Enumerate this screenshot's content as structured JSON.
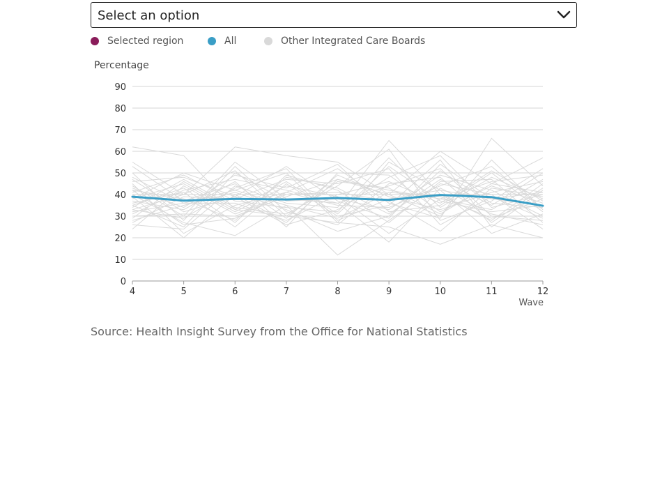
{
  "select": {
    "value": "Select an option"
  },
  "legend": {
    "items": [
      {
        "label": "Selected region",
        "color": "#8a1c5a"
      },
      {
        "label": "All",
        "color": "#3a9ec6"
      },
      {
        "label": "Other Integrated Care Boards",
        "color": "#d9d9d9"
      }
    ]
  },
  "chart_data": {
    "type": "line",
    "ylabel": "Percentage",
    "xlabel": "Wave",
    "ylim": [
      0,
      90
    ],
    "yticks": [
      0,
      10,
      20,
      30,
      40,
      50,
      60,
      70,
      80,
      90
    ],
    "x": [
      4,
      5,
      6,
      7,
      8,
      9,
      10,
      11,
      12
    ],
    "grid": true,
    "series": [
      {
        "name": "All",
        "color": "#3a9ec6",
        "values": [
          39,
          37.2,
          38,
          37.7,
          38.4,
          37.5,
          39.8,
          38.8,
          34.8
        ]
      }
    ],
    "other_series_color": "#d9d9d9",
    "other_series": [
      [
        62,
        58,
        33,
        30,
        27,
        25,
        17,
        26,
        20
      ],
      [
        55,
        40,
        62,
        58,
        55,
        40,
        60,
        45,
        41
      ],
      [
        48,
        36,
        42,
        50,
        27,
        55,
        42,
        38,
        35
      ],
      [
        45,
        22,
        35,
        41,
        52,
        36,
        29,
        66,
        44
      ],
      [
        44,
        30,
        55,
        38,
        36,
        44,
        52,
        30,
        28
      ],
      [
        42,
        38,
        28,
        48,
        43,
        31,
        47,
        35,
        50
      ],
      [
        41,
        49,
        37,
        34,
        32,
        57,
        34,
        48,
        38
      ],
      [
        40,
        27,
        21,
        35,
        12,
        28,
        45,
        40,
        24
      ],
      [
        39,
        20,
        40,
        27,
        47,
        40,
        30,
        56,
        33
      ],
      [
        38,
        45,
        32,
        44,
        39,
        22,
        38,
        33,
        47
      ],
      [
        37,
        33,
        46,
        25,
        50,
        49,
        32,
        44,
        36
      ],
      [
        36,
        41,
        25,
        45,
        30,
        35,
        56,
        25,
        42
      ],
      [
        35,
        25,
        50,
        37,
        38,
        33,
        49,
        42,
        30
      ],
      [
        34,
        47,
        34,
        31,
        44,
        61,
        28,
        37,
        52
      ],
      [
        33,
        29,
        43,
        52,
        28,
        38,
        42,
        22,
        31
      ],
      [
        32,
        36,
        36,
        28,
        40,
        46,
        36,
        51,
        37
      ],
      [
        31,
        42,
        47,
        42,
        36,
        18,
        43,
        31,
        26
      ],
      [
        30,
        31,
        30,
        39,
        47,
        42,
        38,
        46,
        49
      ],
      [
        28,
        35,
        41,
        33,
        23,
        30,
        51,
        36,
        34
      ],
      [
        27,
        39,
        38,
        47,
        45,
        52,
        26,
        39,
        29
      ],
      [
        26,
        24,
        44,
        36,
        34,
        65,
        40,
        28,
        45
      ],
      [
        24,
        44,
        31,
        40,
        41,
        37,
        23,
        43,
        39
      ],
      [
        46,
        48,
        39,
        26,
        33,
        48,
        58,
        34,
        40
      ],
      [
        43,
        34,
        49,
        43,
        54,
        32,
        35,
        50,
        32
      ],
      [
        50,
        28,
        53,
        32,
        26,
        45,
        48,
        27,
        43
      ],
      [
        35,
        43,
        27,
        49,
        42,
        27,
        46,
        47,
        27
      ],
      [
        53,
        37,
        45,
        29,
        49,
        39,
        33,
        41,
        46
      ],
      [
        29,
        46,
        33,
        46,
        31,
        53,
        37,
        32,
        35
      ],
      [
        47,
        32,
        39,
        53,
        37,
        29,
        54,
        38,
        41
      ],
      [
        33,
        40,
        51,
        30,
        46,
        43,
        31,
        45,
        57
      ],
      [
        42,
        26,
        29,
        41,
        35,
        34,
        44,
        53,
        33
      ],
      [
        38,
        50,
        42,
        35,
        29,
        41,
        39,
        29,
        38
      ]
    ]
  },
  "source": "Source: Health Insight Survey from the Office for National Statistics"
}
